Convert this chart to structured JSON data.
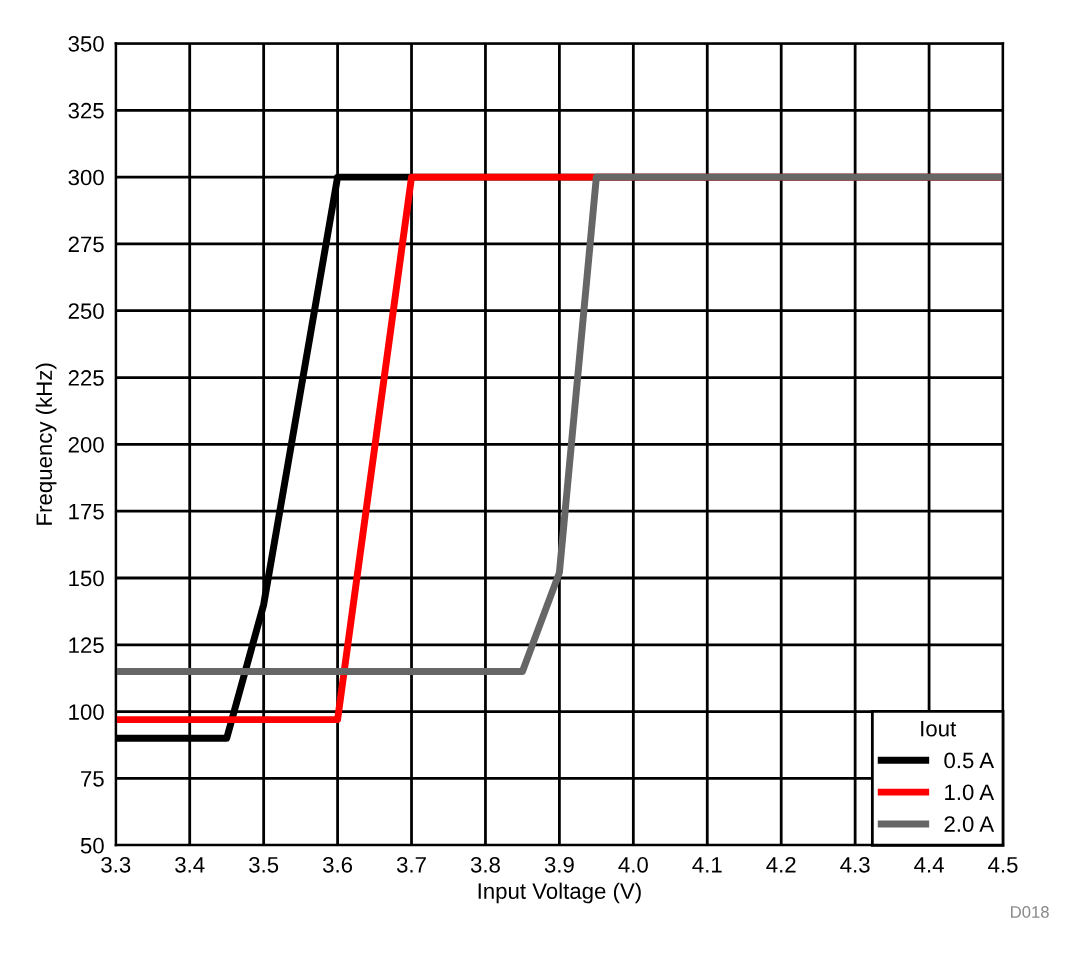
{
  "chart_data": {
    "type": "line",
    "xlabel": "Input Voltage (V)",
    "ylabel": "Frequency (kHz)",
    "legend_title": "Iout",
    "legend": "bottom right",
    "grid": true,
    "line_style": "solid",
    "marker": "none",
    "xlim": [
      3.3,
      4.5
    ],
    "xticks": [
      {
        "value": 3.3,
        "label": "3.3"
      },
      {
        "value": 3.4,
        "label": "3.4"
      },
      {
        "value": 3.5,
        "label": "3.5"
      },
      {
        "value": 3.6,
        "label": "3.6"
      },
      {
        "value": 3.7,
        "label": "3.7"
      },
      {
        "value": 3.8,
        "label": "3.8"
      },
      {
        "value": 3.9,
        "label": "3.9"
      },
      {
        "value": 4.0,
        "label": "4.0"
      },
      {
        "value": 4.1,
        "label": "4.1"
      },
      {
        "value": 4.2,
        "label": "4.2"
      },
      {
        "value": 4.3,
        "label": "4.3"
      },
      {
        "value": 4.4,
        "label": "4.4"
      },
      {
        "value": 4.5,
        "label": "4.5"
      }
    ],
    "ylim": [
      50,
      350
    ],
    "yticks": [
      50,
      75,
      100,
      125,
      150,
      175,
      200,
      225,
      250,
      275,
      300,
      325,
      350
    ],
    "annotations": [
      "D018"
    ],
    "series": [
      {
        "name": "0.5 A",
        "color": "#000000",
        "x": [
          3.3,
          3.45,
          3.5,
          3.55,
          3.6,
          4.5
        ],
        "values": [
          90,
          90,
          140,
          220,
          300,
          300
        ]
      },
      {
        "name": "1.0 A",
        "color": "#ff0000",
        "x": [
          3.3,
          3.6,
          3.7,
          4.5
        ],
        "values": [
          97,
          97,
          300,
          300
        ]
      },
      {
        "name": "2.0 A",
        "color": "#666666",
        "x": [
          3.3,
          3.85,
          3.9,
          3.95,
          4.5
        ],
        "values": [
          115,
          115,
          152,
          300,
          300
        ]
      }
    ]
  }
}
